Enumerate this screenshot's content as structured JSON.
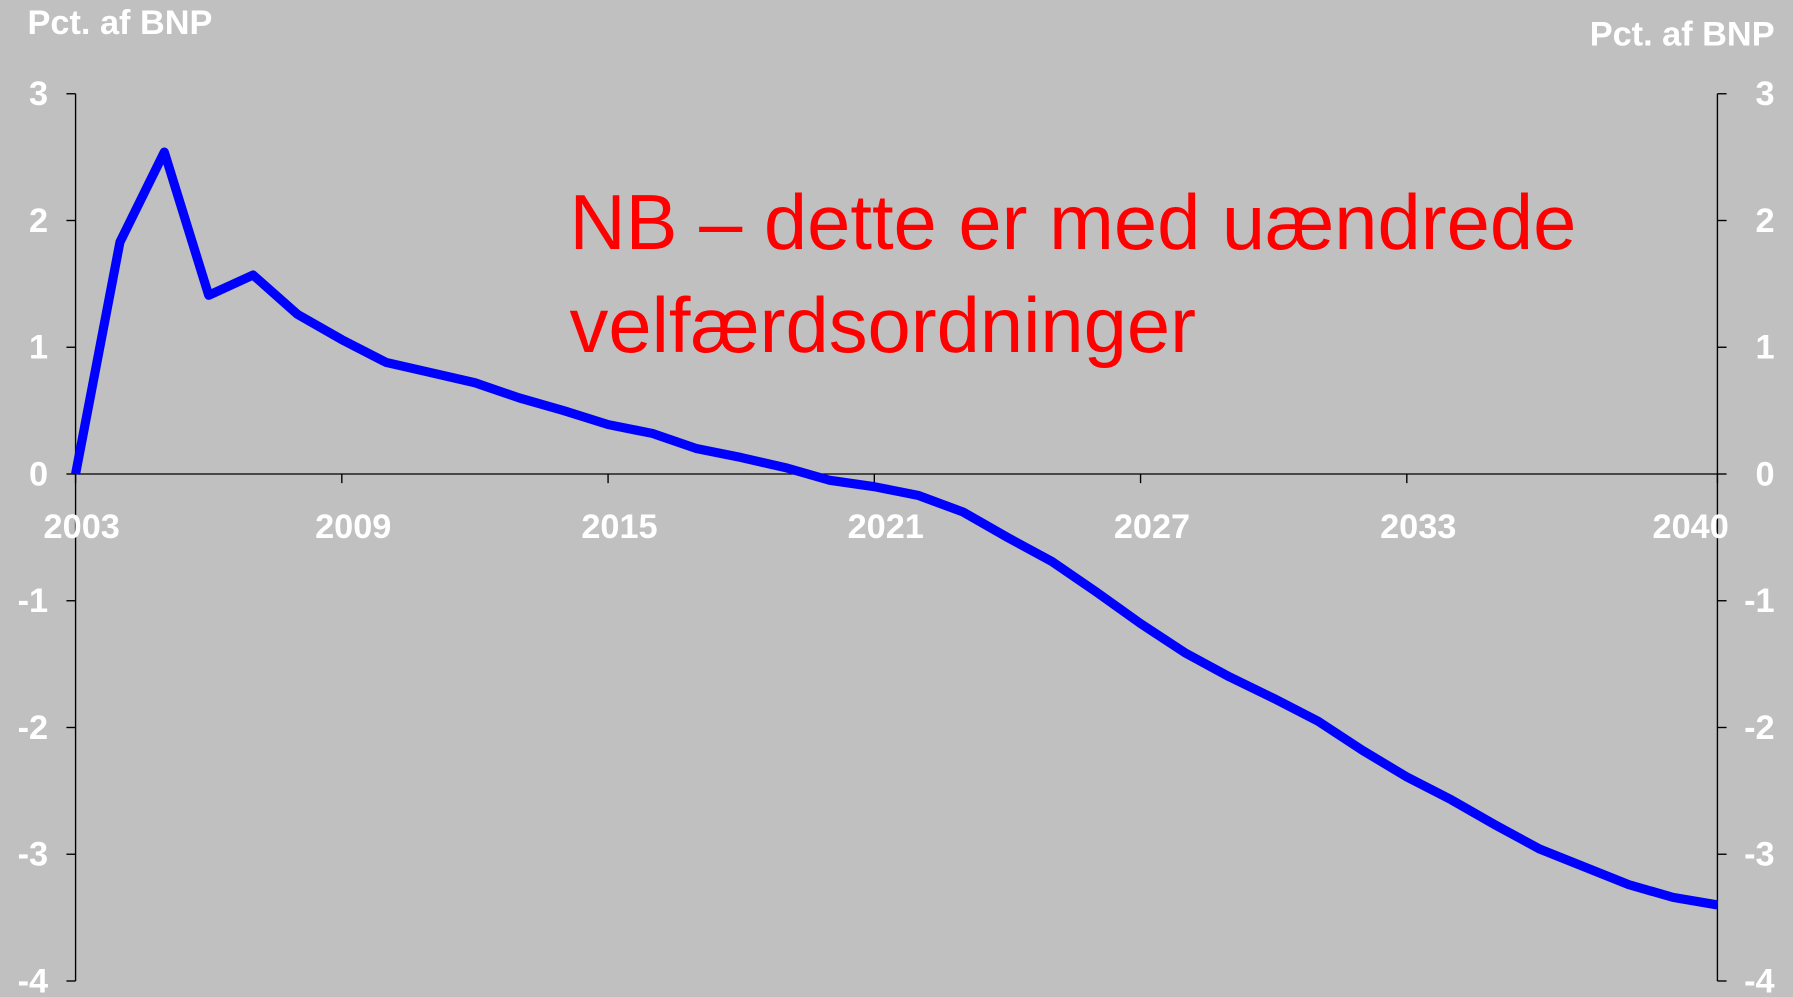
{
  "chart_data": {
    "type": "line",
    "y_label": "Pct. af BNP",
    "y2_label": "Pct. af BNP",
    "annotation": [
      "NB – dette er med uændrede",
      "velfærdsordninger"
    ],
    "x": [
      2003,
      2004,
      2005,
      2006,
      2007,
      2008,
      2009,
      2010,
      2011,
      2012,
      2013,
      2014,
      2015,
      2016,
      2017,
      2018,
      2019,
      2020,
      2021,
      2022,
      2023,
      2024,
      2025,
      2026,
      2027,
      2028,
      2029,
      2030,
      2031,
      2032,
      2033,
      2034,
      2035,
      2036,
      2037,
      2038,
      2039,
      2040
    ],
    "series": [
      {
        "color": "#0000ff",
        "values": [
          0,
          1.83,
          2.54,
          1.41,
          1.57,
          1.26,
          1.06,
          0.88,
          0.8,
          0.72,
          0.6,
          0.5,
          0.39,
          0.32,
          0.2,
          0.13,
          0.05,
          -0.05,
          -0.1,
          -0.17,
          -0.3,
          -0.5,
          -0.69,
          -0.93,
          -1.18,
          -1.41,
          -1.6,
          -1.77,
          -1.95,
          -2.18,
          -2.39,
          -2.57,
          -2.77,
          -2.96,
          -3.1,
          -3.24,
          -3.34,
          -3.4
        ]
      }
    ],
    "xlim": [
      2003,
      2040
    ],
    "xticks": [
      2003,
      2009,
      2015,
      2021,
      2027,
      2033,
      2040
    ],
    "ylim": [
      -4,
      3
    ],
    "yticks": [
      -4,
      -3,
      -2,
      -1,
      0,
      1,
      2,
      3
    ],
    "y2lim": [
      -4,
      3
    ],
    "y2ticks": [
      -4,
      -3,
      -2,
      -1,
      0,
      1,
      2,
      3
    ]
  }
}
